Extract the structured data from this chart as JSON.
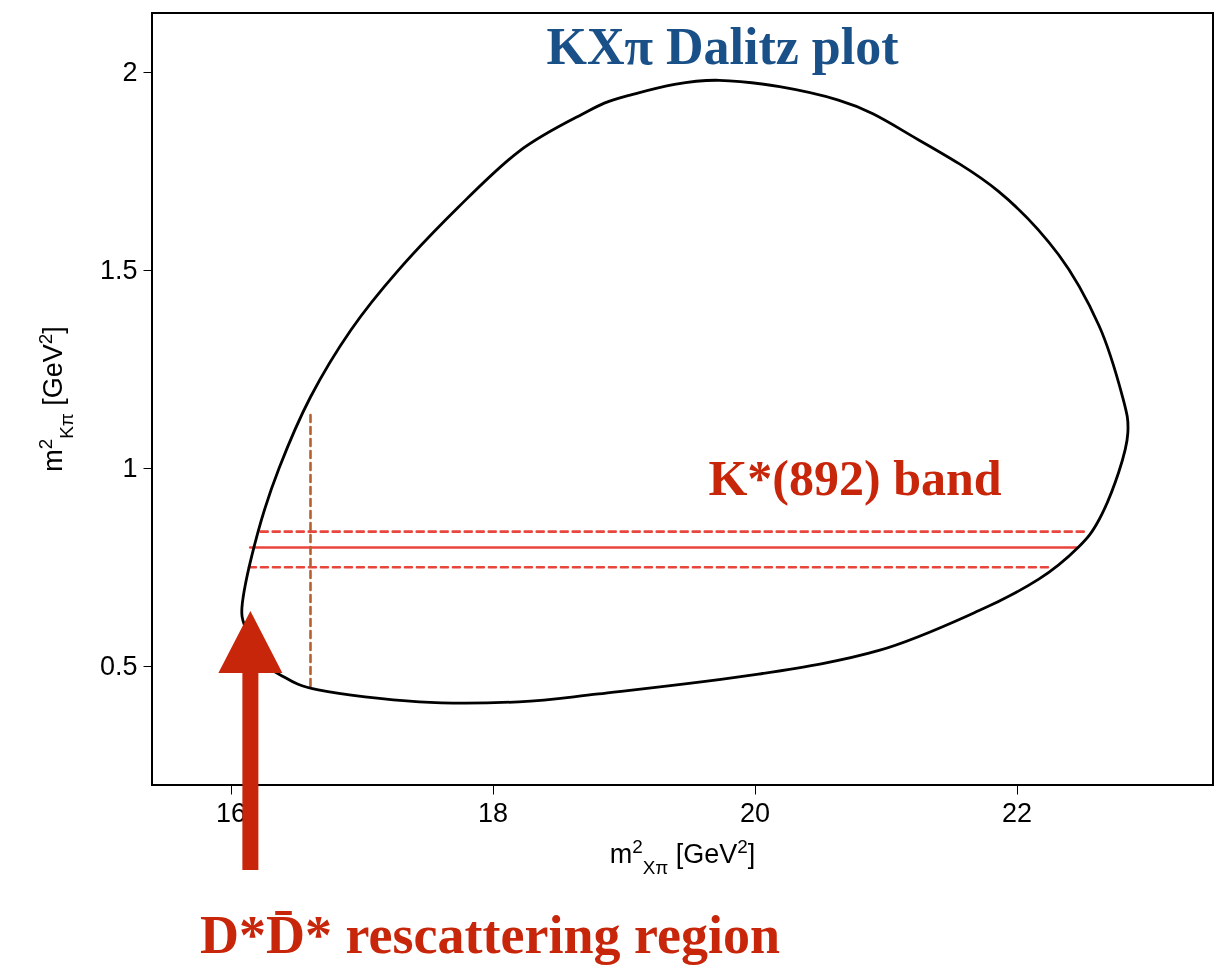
{
  "chart_data": {
    "type": "line",
    "title": "KXπ Dalitz plot",
    "xlabel": "m$^{2}$$_{Xπ}$ [GeV$^{2}$]",
    "ylabel": "m$^{2}$$_{Kπ}$ [GeV$^{2}$]",
    "xlim": [
      15.4,
      23.5
    ],
    "ylim": [
      0.2,
      2.15
    ],
    "xticks": [
      16,
      18,
      20,
      22
    ],
    "yticks": [
      0.5,
      1,
      1.5,
      2
    ],
    "series": [
      {
        "color": "#e8453c",
        "line_style": "solid",
        "x": [
          16.15,
          22.46
        ],
        "values": [
          0.8,
          0.8
        ]
      },
      {
        "color": "#e8453c",
        "line_style": "dashed",
        "x": [
          16.23,
          22.55
        ],
        "values": [
          0.84,
          0.84
        ]
      },
      {
        "color": "#e8453c",
        "line_style": "dashed",
        "x": [
          16.14,
          22.24
        ],
        "values": [
          0.75,
          0.75
        ]
      },
      {
        "color": "#b5602f",
        "line_style": "dashed",
        "x": [
          16.61,
          16.61
        ],
        "values": [
          0.45,
          1.14
        ]
      }
    ],
    "annotations": [
      "K*(892) band",
      "D*D̄* rescattering region"
    ]
  }
}
